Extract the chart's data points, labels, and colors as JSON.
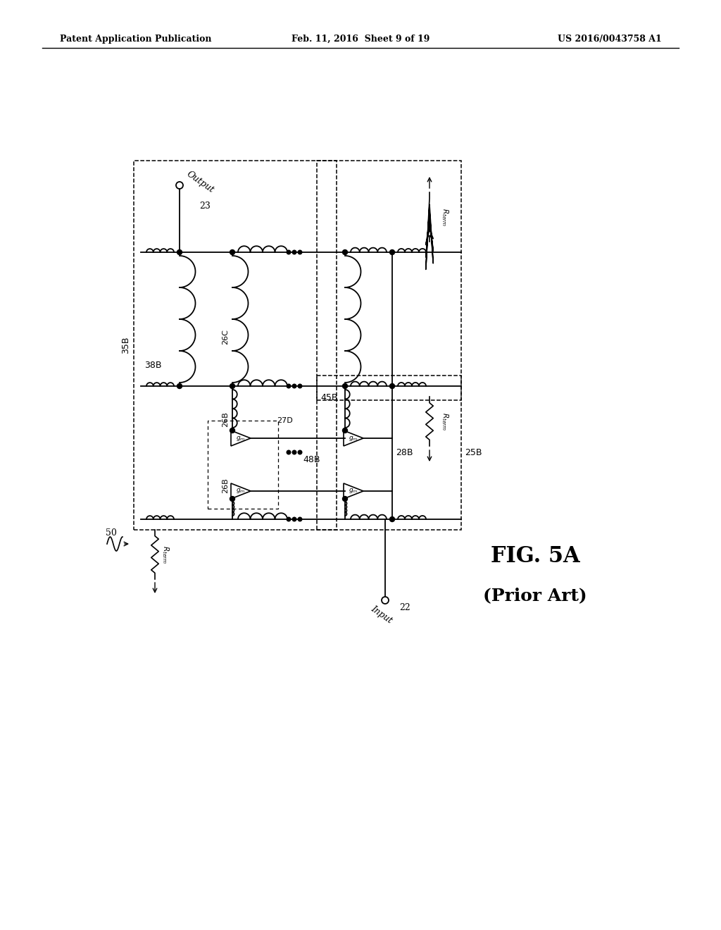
{
  "bg_color": "#ffffff",
  "header_left": "Patent Application Publication",
  "header_mid": "Feb. 11, 2016  Sheet 9 of 19",
  "header_right": "US 2016/0043758 A1",
  "fig_label": "FIG. 5A",
  "fig_sublabel": "(Prior Art)"
}
